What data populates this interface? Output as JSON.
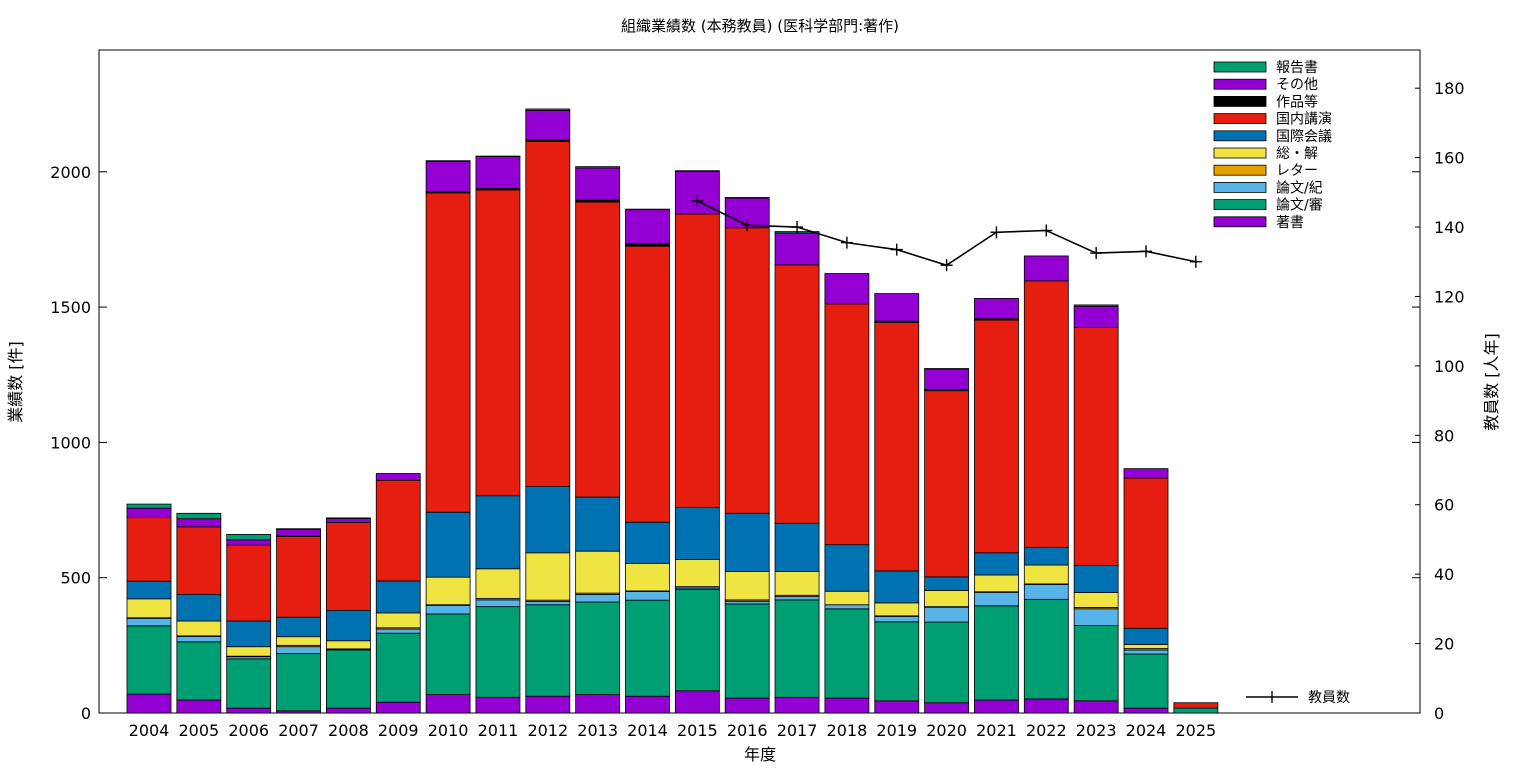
{
  "chart_data": {
    "type": "bar",
    "title": "組織業績数 (本務教員) (医科学部門:著作)",
    "xlabel": "年度",
    "ylabel": "業績数 [件]",
    "y2label": "教員数 [人年]",
    "ylim": [
      0,
      2450
    ],
    "y2lim": [
      0,
      191
    ],
    "yticks": [
      "0",
      "500",
      "1000",
      "1500",
      "2000"
    ],
    "y2ticks": [
      "0",
      "20",
      "40",
      "60",
      "80",
      "100",
      "120",
      "140",
      "160",
      "180"
    ],
    "grid": false,
    "legend_position": "top-right",
    "categories": [
      "2004",
      "2005",
      "2006",
      "2007",
      "2008",
      "2009",
      "2010",
      "2011",
      "2012",
      "2013",
      "2014",
      "2015",
      "2016",
      "2017",
      "2018",
      "2019",
      "2020",
      "2021",
      "2022",
      "2023",
      "2024",
      "2025"
    ],
    "series": [
      {
        "name": "著書",
        "color": "#9400d3",
        "values": [
          70,
          48,
          18,
          8,
          18,
          40,
          68,
          58,
          62,
          68,
          62,
          82,
          55,
          58,
          55,
          45,
          38,
          48,
          52,
          45,
          18,
          0
        ]
      },
      {
        "name": "論文/審",
        "color": "#009e73",
        "values": [
          252,
          215,
          182,
          212,
          215,
          255,
          298,
          335,
          338,
          342,
          355,
          375,
          348,
          360,
          330,
          292,
          298,
          348,
          368,
          278,
          200,
          18
        ]
      },
      {
        "name": "論文/紀",
        "color": "#56b4e9",
        "values": [
          28,
          20,
          8,
          25,
          2,
          15,
          32,
          25,
          12,
          28,
          32,
          5,
          10,
          12,
          15,
          20,
          55,
          50,
          55,
          62,
          15,
          0
        ]
      },
      {
        "name": "レター",
        "color": "#e69f00",
        "values": [
          2,
          2,
          2,
          5,
          2,
          5,
          2,
          5,
          5,
          5,
          2,
          5,
          5,
          5,
          0,
          2,
          2,
          2,
          2,
          5,
          5,
          0
        ]
      },
      {
        "name": "総・解",
        "color": "#f0e442",
        "values": [
          70,
          55,
          35,
          32,
          30,
          55,
          102,
          110,
          175,
          155,
          102,
          100,
          105,
          88,
          50,
          48,
          60,
          62,
          70,
          55,
          15,
          0
        ]
      },
      {
        "name": "国際会議",
        "color": "#0072b2",
        "values": [
          65,
          98,
          95,
          72,
          112,
          118,
          240,
          270,
          245,
          200,
          152,
          192,
          215,
          178,
          172,
          118,
          50,
          82,
          65,
          100,
          60,
          0
        ]
      },
      {
        "name": "国内講演",
        "color": "#e51e10",
        "values": [
          235,
          250,
          280,
          298,
          325,
          372,
          1180,
          1130,
          1275,
          1090,
          1020,
          1085,
          1055,
          955,
          890,
          918,
          688,
          860,
          985,
          880,
          555,
          20
        ]
      },
      {
        "name": "作品等",
        "color": "#000000",
        "values": [
          0,
          0,
          0,
          2,
          0,
          0,
          5,
          5,
          5,
          8,
          10,
          0,
          0,
          0,
          0,
          5,
          5,
          5,
          0,
          0,
          0,
          0
        ]
      },
      {
        "name": "その他",
        "color": "#9400d3",
        "values": [
          35,
          30,
          20,
          25,
          15,
          25,
          112,
          118,
          110,
          118,
          125,
          158,
          110,
          118,
          112,
          102,
          75,
          75,
          92,
          78,
          35,
          0
        ]
      },
      {
        "name": "報告書",
        "color": "#009e73",
        "values": [
          15,
          20,
          20,
          2,
          2,
          0,
          2,
          2,
          5,
          5,
          2,
          2,
          2,
          5,
          0,
          0,
          2,
          0,
          0,
          5,
          0,
          0
        ]
      }
    ],
    "line_series": {
      "name": "教員数",
      "color": "#000000",
      "axis": "right",
      "x": [
        "2015",
        "2016",
        "2017",
        "2018",
        "2019",
        "2020",
        "2021",
        "2022",
        "2023",
        "2024",
        "2025"
      ],
      "values": [
        147.5,
        140.5,
        140,
        135.5,
        133.5,
        129,
        138.5,
        139,
        132.5,
        133,
        130
      ]
    }
  }
}
